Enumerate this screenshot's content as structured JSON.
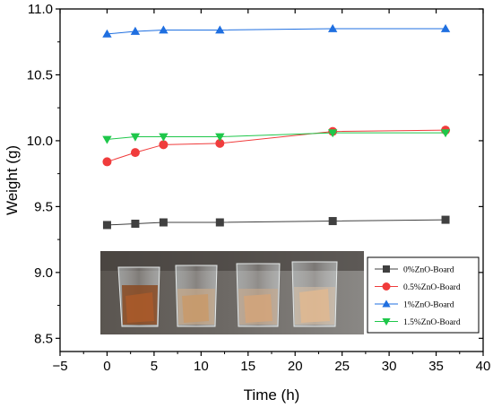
{
  "chart_data": {
    "type": "line",
    "title": "",
    "xlabel": "Time (h)",
    "ylabel": "Weight (g)",
    "xlim": [
      -5,
      40
    ],
    "ylim": [
      8.4,
      11.0
    ],
    "xticks": [
      -5,
      0,
      5,
      10,
      15,
      20,
      25,
      30,
      35,
      40
    ],
    "xtick_labels": [
      "−5",
      "0",
      "5",
      "10",
      "15",
      "20",
      "25",
      "30",
      "35",
      "40"
    ],
    "yticks": [
      8.5,
      9.0,
      9.5,
      10.0,
      10.5,
      11.0
    ],
    "ytick_labels": [
      "8.5",
      "9.0",
      "9.5",
      "10.0",
      "10.5",
      "11.0"
    ],
    "grid": false,
    "legend_position": "bottom-right",
    "x": [
      0,
      3,
      6,
      12,
      24,
      36
    ],
    "series": [
      {
        "name": "0%ZnO-Board",
        "marker": "square",
        "color": "#404040",
        "values": [
          9.36,
          9.37,
          9.38,
          9.38,
          9.39,
          9.4
        ]
      },
      {
        "name": "0.5%ZnO-Board",
        "marker": "circle",
        "color": "#f03c3c",
        "values": [
          9.84,
          9.91,
          9.97,
          9.98,
          10.07,
          10.08
        ]
      },
      {
        "name": "1%ZnO-Board",
        "marker": "triangle-up",
        "color": "#1f6fe0",
        "values": [
          10.81,
          10.83,
          10.84,
          10.84,
          10.85,
          10.85
        ]
      },
      {
        "name": "1.5%ZnO-Board",
        "marker": "triangle-down",
        "color": "#1ec74a",
        "values": [
          10.01,
          10.03,
          10.03,
          10.03,
          10.06,
          10.06
        ]
      }
    ],
    "inset_image": "photo-of-four-beakers-with-board-samples-in-water"
  }
}
